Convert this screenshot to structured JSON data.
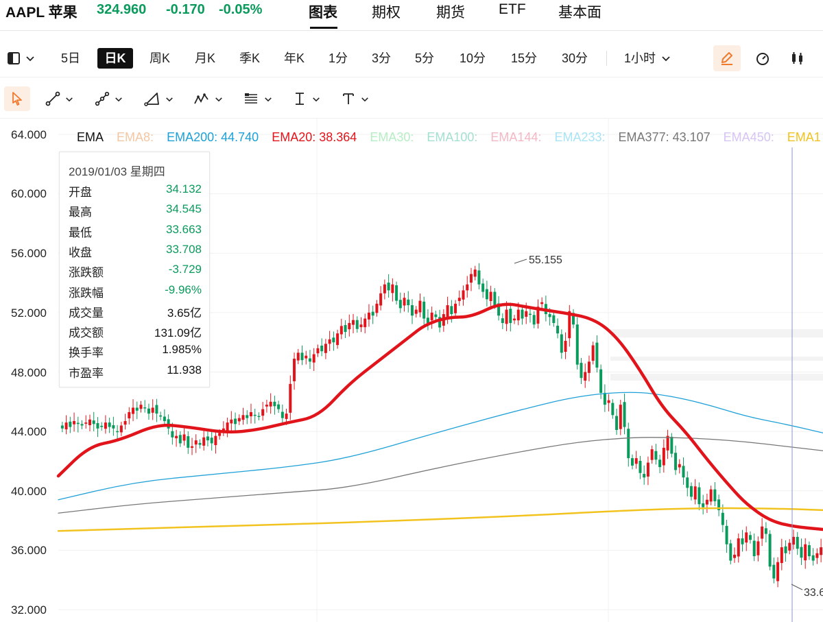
{
  "header": {
    "ticker": "AAPL 苹果",
    "price": "324.960",
    "change": "-0.170",
    "change_pct": "-0.05%",
    "quote_color": "#0a9a5c",
    "tabs": [
      "图表",
      "期权",
      "期货",
      "ETF",
      "基本面"
    ],
    "active_tab": "图表"
  },
  "period_bar": {
    "periods": [
      "5日",
      "日K",
      "周K",
      "月K",
      "季K",
      "年K",
      "1分",
      "3分",
      "5分",
      "10分",
      "15分",
      "30分"
    ],
    "active_period": "日K",
    "interval_select": "1小时",
    "icons": [
      "layout-icon",
      "pencil-icon",
      "gauge-icon",
      "candlestick-icon"
    ]
  },
  "draw_bar": {
    "icons": [
      "cursor-icon",
      "line-tool-icon",
      "multi-point-line-icon",
      "triangle-tool-icon",
      "wave-tool-icon",
      "fibonacci-icon",
      "price-range-icon",
      "text-tool-icon"
    ],
    "accent": "#f07a2e"
  },
  "legend": {
    "label": "EMA",
    "items": [
      {
        "text": "EMA8:",
        "color": "#f3c7a3"
      },
      {
        "text": "EMA200: 44.740",
        "color": "#1ea0d8"
      },
      {
        "text": "EMA20: 38.364",
        "color": "#e2141b"
      },
      {
        "text": "EMA30:",
        "color": "#b6eec4"
      },
      {
        "text": "EMA100:",
        "color": "#a5e0cf"
      },
      {
        "text": "EMA144:",
        "color": "#f5b7c4"
      },
      {
        "text": "EMA233:",
        "color": "#a8e4f4"
      },
      {
        "text": "EMA377: 43.107",
        "color": "#777777"
      },
      {
        "text": "EMA450:",
        "color": "#d6c4f5"
      },
      {
        "text": "EMA1",
        "color": "#f2c31f"
      }
    ]
  },
  "info_box": {
    "date": "2019/01/03 星期四",
    "rows": [
      {
        "label": "开盘",
        "value": "34.132",
        "color": "#0a9a5c"
      },
      {
        "label": "最高",
        "value": "34.545",
        "color": "#0a9a5c"
      },
      {
        "label": "最低",
        "value": "33.663",
        "color": "#0a9a5c"
      },
      {
        "label": "收盘",
        "value": "33.708",
        "color": "#0a9a5c"
      },
      {
        "label": "涨跌额",
        "value": "-3.729",
        "color": "#0a9a5c"
      },
      {
        "label": "涨跌幅",
        "value": "-9.96%",
        "color": "#0a9a5c"
      },
      {
        "label": "成交量",
        "value": "3.65亿",
        "color": "#111111"
      },
      {
        "label": "成交额",
        "value": "131.09亿",
        "color": "#111111"
      },
      {
        "label": "换手率",
        "value": "1.985%",
        "color": "#111111"
      },
      {
        "label": "市盈率",
        "value": "11.938",
        "color": "#111111"
      }
    ]
  },
  "chart_data": {
    "type": "line",
    "y_ticks": [
      "64.000",
      "60.000",
      "56.000",
      "52.000",
      "48.000",
      "44.000",
      "40.000",
      "36.000",
      "32.000"
    ],
    "ylim": [
      32,
      64
    ],
    "annotations": {
      "high": "55.155",
      "low": "33.6"
    },
    "up_color": "#e2141b",
    "down_color": "#0a9a5c",
    "candle_closes": [
      44.2,
      44.6,
      44.3,
      44.7,
      44.5,
      44.4,
      44.6,
      44.8,
      44.5,
      44.2,
      44.3,
      44.6,
      44.3,
      44.2,
      44.0,
      44.4,
      44.7,
      45.3,
      45.6,
      45.4,
      45.8,
      45.6,
      45.2,
      45.6,
      45.2,
      45.0,
      44.7,
      44.2,
      43.6,
      43.7,
      43.2,
      43.8,
      42.9,
      43.0,
      43.4,
      43.1,
      43.6,
      43.4,
      43.2,
      43.7,
      43.9,
      44.2,
      44.6,
      44.8,
      44.5,
      44.9,
      45.1,
      44.9,
      45.3,
      45.1,
      45.0,
      45.5,
      45.8,
      46.0,
      45.7,
      45.5,
      44.9,
      45.2,
      47.2,
      48.9,
      49.3,
      48.8,
      49.1,
      48.7,
      49.2,
      49.6,
      49.4,
      49.9,
      50.2,
      50.0,
      50.6,
      51.1,
      50.7,
      51.3,
      51.5,
      50.9,
      51.2,
      51.6,
      52.0,
      51.8,
      52.6,
      53.3,
      53.9,
      53.5,
      53.9,
      52.8,
      52.3,
      53.0,
      52.5,
      51.8,
      52.2,
      52.8,
      51.6,
      51.3,
      52.0,
      51.7,
      51.0,
      51.9,
      52.5,
      51.9,
      52.6,
      53.0,
      53.5,
      53.9,
      54.6,
      54.9,
      53.9,
      53.4,
      52.9,
      53.4,
      52.5,
      51.8,
      51.3,
      52.2,
      51.3,
      51.6,
      52.2,
      51.6,
      52.1,
      51.9,
      51.2,
      52.4,
      52.7,
      51.9,
      51.7,
      51.3,
      50.6,
      49.3,
      50.1,
      52.1,
      51.2,
      48.5,
      47.6,
      48.0,
      48.7,
      49.8,
      48.3,
      46.6,
      45.8,
      46.1,
      45.1,
      44.1,
      45.8,
      44.3,
      42.2,
      41.7,
      42.2,
      41.2,
      40.9,
      41.9,
      42.8,
      42.1,
      41.6,
      42.9,
      43.7,
      42.5,
      41.4,
      41.8,
      40.9,
      40.2,
      39.6,
      40.3,
      39.1,
      38.9,
      39.4,
      40.1,
      39.3,
      38.7,
      37.7,
      36.4,
      35.3,
      35.7,
      36.8,
      36.4,
      37.2,
      36.7,
      35.6,
      36.6,
      37.6,
      37.1,
      34.9,
      34.1,
      35.2,
      36.2,
      35.8,
      36.5,
      36.9,
      36.1,
      35.5,
      36.4,
      35.6,
      35.3,
      35.8,
      36.2
    ],
    "series": [
      {
        "name": "EMA20",
        "color": "#e2141b",
        "x": [
          0,
          0.04,
          0.08,
          0.13,
          0.17,
          0.22,
          0.26,
          0.3,
          0.34,
          0.38,
          0.42,
          0.46,
          0.48,
          0.51,
          0.54,
          0.58,
          0.62,
          0.66,
          0.7,
          0.73,
          0.76,
          0.79,
          0.82,
          0.85,
          0.88,
          0.9,
          0.93,
          0.96,
          1.0
        ],
        "values": [
          41.0,
          43.0,
          43.4,
          44.5,
          44.3,
          43.9,
          44.1,
          44.6,
          45.0,
          47.2,
          48.8,
          50.4,
          51.2,
          51.7,
          51.7,
          52.7,
          52.3,
          52.0,
          51.6,
          50.4,
          48.2,
          45.6,
          44.0,
          42.0,
          40.2,
          39.1,
          38.0,
          37.6,
          37.4
        ]
      },
      {
        "name": "EMA200",
        "color": "#1ea0d8",
        "x": [
          0,
          0.1,
          0.2,
          0.3,
          0.38,
          0.5,
          0.6,
          0.68,
          0.75,
          0.8,
          0.85,
          0.9,
          0.95,
          1.0
        ],
        "values": [
          39.4,
          40.6,
          41.1,
          41.6,
          42.2,
          44.0,
          45.4,
          46.4,
          46.7,
          46.4,
          45.8,
          45.0,
          44.5,
          43.9
        ]
      },
      {
        "name": "EMA377",
        "color": "#777777",
        "x": [
          0,
          0.1,
          0.2,
          0.3,
          0.38,
          0.5,
          0.6,
          0.68,
          0.75,
          0.8,
          0.85,
          0.9,
          0.95,
          1.0
        ],
        "values": [
          38.5,
          39.1,
          39.5,
          39.9,
          40.2,
          41.6,
          42.6,
          43.3,
          43.6,
          43.6,
          43.5,
          43.3,
          43.0,
          42.7
        ]
      },
      {
        "name": "EMA1",
        "color": "#f2c31f",
        "x": [
          0,
          0.2,
          0.4,
          0.6,
          0.75,
          0.85,
          0.95,
          1.0
        ],
        "values": [
          37.3,
          37.6,
          37.9,
          38.3,
          38.7,
          38.85,
          38.8,
          38.7
        ]
      }
    ]
  }
}
